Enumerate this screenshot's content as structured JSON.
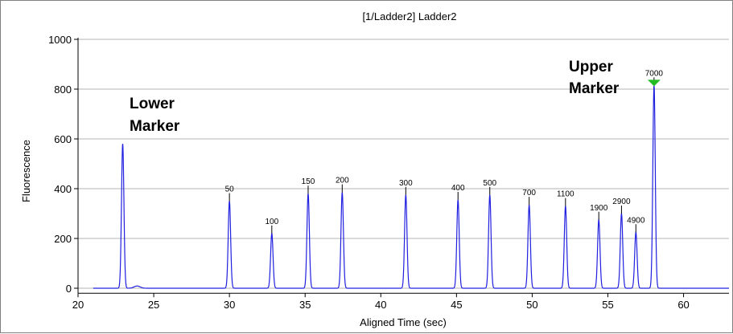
{
  "chart_data": {
    "type": "line",
    "title": "[1/Ladder2] Ladder2",
    "xlabel": "Aligned Time (sec)",
    "ylabel": "Fluorescence",
    "xlim": [
      20,
      63
    ],
    "ylim": [
      -20,
      1000
    ],
    "x_ticks": [
      20,
      25,
      30,
      35,
      40,
      45,
      50,
      55,
      60
    ],
    "y_ticks": [
      0,
      200,
      400,
      600,
      800,
      1000
    ],
    "grid": true,
    "series_color": "#2020e0",
    "marker_color": "#22bb22",
    "peaks": [
      {
        "x": 22.95,
        "y": 580,
        "label": ""
      },
      {
        "x": 30.0,
        "y": 350,
        "label": "50"
      },
      {
        "x": 32.8,
        "y": 220,
        "label": "100"
      },
      {
        "x": 35.2,
        "y": 380,
        "label": "150"
      },
      {
        "x": 37.45,
        "y": 385,
        "label": "200"
      },
      {
        "x": 41.65,
        "y": 375,
        "label": "300"
      },
      {
        "x": 45.1,
        "y": 355,
        "label": "400"
      },
      {
        "x": 47.2,
        "y": 375,
        "label": "500"
      },
      {
        "x": 49.8,
        "y": 335,
        "label": "700"
      },
      {
        "x": 52.2,
        "y": 330,
        "label": "1100"
      },
      {
        "x": 54.4,
        "y": 275,
        "label": "1900"
      },
      {
        "x": 55.9,
        "y": 300,
        "label": "2900"
      },
      {
        "x": 56.85,
        "y": 225,
        "label": "4900"
      },
      {
        "x": 58.05,
        "y": 815,
        "label": "7000"
      }
    ],
    "annotations": [
      {
        "id": "lower",
        "lines": [
          "Lower",
          "Marker"
        ]
      },
      {
        "id": "upper",
        "lines": [
          "Upper",
          "Marker"
        ]
      }
    ]
  }
}
